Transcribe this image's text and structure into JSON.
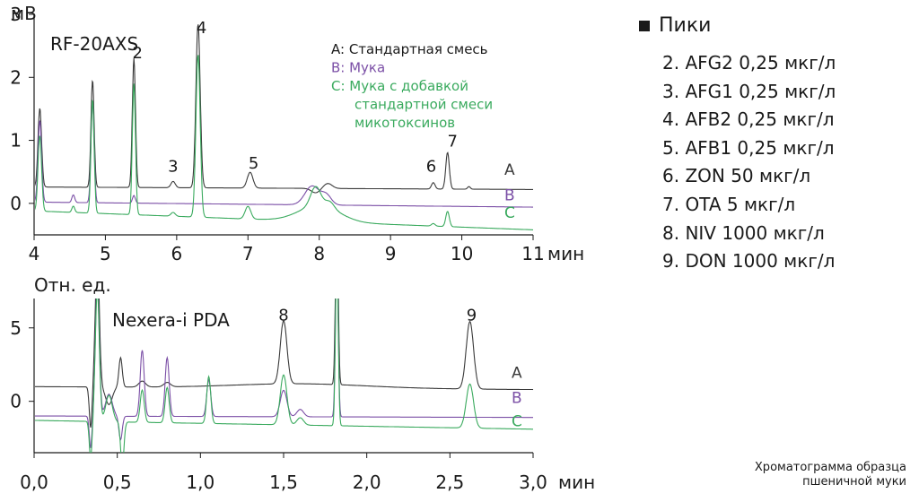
{
  "chart_data": [
    {
      "type": "line",
      "instrument": "RF-20AXS",
      "y_unit": "мВ",
      "x_unit": "мин",
      "xlim": [
        4,
        11
      ],
      "ylim": [
        -0.5,
        3
      ],
      "x_ticks": [
        "4",
        "5",
        "6",
        "7",
        "8",
        "9",
        "10",
        "11"
      ],
      "y_ticks": [
        "0",
        "1",
        "2",
        "3"
      ],
      "grid": false,
      "annotations_legend": [
        "A: Стандартная смесь",
        "B: Мука",
        "C: Мука с добавкой",
        "стандартной смеси",
        "микотоксинов"
      ],
      "peak_labels": [
        {
          "label": "2",
          "x": 5.45,
          "y": 2.3
        },
        {
          "label": "3",
          "x": 5.95,
          "y": 0.5
        },
        {
          "label": "4",
          "x": 6.35,
          "y": 2.7
        },
        {
          "label": "5",
          "x": 7.08,
          "y": 0.55
        },
        {
          "label": "6",
          "x": 9.57,
          "y": 0.5
        },
        {
          "label": "7",
          "x": 9.87,
          "y": 0.9
        }
      ],
      "series": [
        {
          "name": "A",
          "color": "#3a3a3a",
          "baseline": 0.26,
          "end_baseline": 0.22,
          "label_y": 0.45,
          "peaks": [
            [
              4.08,
              1.25,
              0.025
            ],
            [
              4.82,
              1.7,
              0.022
            ],
            [
              5.4,
              2.05,
              0.022
            ],
            [
              5.95,
              0.1,
              0.03
            ],
            [
              6.3,
              2.6,
              0.03
            ],
            [
              7.03,
              0.25,
              0.04
            ],
            [
              7.95,
              -0.07,
              0.06
            ],
            [
              8.12,
              0.08,
              0.06
            ],
            [
              9.6,
              0.1,
              0.025
            ],
            [
              9.8,
              0.58,
              0.025
            ],
            [
              10.1,
              0.04,
              0.02
            ]
          ],
          "drifts": []
        },
        {
          "name": "B",
          "color": "#7b4fa6",
          "baseline": 0.02,
          "end_baseline": -0.06,
          "label_y": 0.05,
          "peaks": [
            [
              4.08,
              1.3,
              0.025
            ],
            [
              4.55,
              0.12,
              0.02
            ],
            [
              4.82,
              1.6,
              0.022
            ],
            [
              5.4,
              0.12,
              0.02
            ],
            [
              7.9,
              0.3,
              0.1
            ],
            [
              8.1,
              0.15,
              0.07
            ]
          ],
          "drifts": []
        },
        {
          "name": "C",
          "color": "#3aaa5e",
          "baseline": -0.12,
          "end_baseline": -0.42,
          "label_y": -0.23,
          "peaks": [
            [
              4.08,
              1.2,
              0.025
            ],
            [
              4.55,
              0.1,
              0.02
            ],
            [
              4.82,
              1.8,
              0.022
            ],
            [
              5.4,
              2.08,
              0.022
            ],
            [
              5.95,
              0.06,
              0.03
            ],
            [
              6.3,
              2.58,
              0.03
            ],
            [
              7.0,
              0.2,
              0.04
            ],
            [
              7.95,
              0.3,
              0.07
            ],
            [
              8.15,
              0.1,
              0.06
            ],
            [
              9.6,
              0.04,
              0.025
            ],
            [
              9.8,
              0.24,
              0.025
            ]
          ],
          "drifts": [
            [
              8.0,
              0.26,
              0.28
            ]
          ]
        }
      ]
    },
    {
      "type": "line",
      "instrument": "Nexera-i PDA",
      "y_unit": "Отн. ед.",
      "x_unit": "мин",
      "xlim": [
        0.0,
        3.0
      ],
      "ylim": [
        -3.5,
        7
      ],
      "x_ticks": [
        "0,0",
        "0,5",
        "1,0",
        "1,5",
        "2,0",
        "2,5",
        "3,0"
      ],
      "y_ticks": [
        "0",
        "5"
      ],
      "grid": false,
      "peak_labels": [
        {
          "label": "8",
          "x": 1.5,
          "y": 5.5
        },
        {
          "label": "9",
          "x": 2.63,
          "y": 5.5
        }
      ],
      "series": [
        {
          "name": "A",
          "color": "#3a3a3a",
          "baseline": 1.0,
          "end_baseline": 0.8,
          "label_y": 1.6,
          "peaks": [
            [
              0.38,
              9,
              0.012
            ],
            [
              0.34,
              -2.8,
              0.008
            ],
            [
              0.45,
              -1.2,
              0.02
            ],
            [
              0.52,
              2.0,
              0.01
            ],
            [
              0.65,
              0.4,
              0.02
            ],
            [
              0.8,
              0.3,
              0.02
            ],
            [
              1.5,
              4.3,
              0.02
            ],
            [
              1.82,
              12,
              0.008
            ],
            [
              2.62,
              4.6,
              0.022
            ]
          ],
          "drifts": [
            [
              1.6,
              0.3,
              0.4
            ]
          ]
        },
        {
          "name": "B",
          "color": "#7b4fa6",
          "baseline": -1.0,
          "end_baseline": -1.1,
          "label_y": -0.1,
          "peaks": [
            [
              0.38,
              9,
              0.012
            ],
            [
              0.34,
              -2.2,
              0.008
            ],
            [
              0.45,
              1.5,
              0.02
            ],
            [
              0.52,
              -1.6,
              0.01
            ],
            [
              0.65,
              4.5,
              0.012
            ],
            [
              0.8,
              4.0,
              0.012
            ],
            [
              1.05,
              2.5,
              0.012
            ],
            [
              1.5,
              1.8,
              0.02
            ],
            [
              1.6,
              0.5,
              0.02
            ],
            [
              1.82,
              12,
              0.008
            ]
          ],
          "drifts": []
        },
        {
          "name": "C",
          "color": "#3aaa5e",
          "baseline": -1.3,
          "end_baseline": -1.9,
          "label_y": -1.7,
          "peaks": [
            [
              0.38,
              9,
              0.012
            ],
            [
              0.34,
              -2.6,
              0.008
            ],
            [
              0.45,
              1.8,
              0.02
            ],
            [
              0.53,
              -3.0,
              0.01
            ],
            [
              0.65,
              2.2,
              0.012
            ],
            [
              0.8,
              2.4,
              0.012
            ],
            [
              1.05,
              3.2,
              0.012
            ],
            [
              1.5,
              3.4,
              0.02
            ],
            [
              1.6,
              0.5,
              0.02
            ],
            [
              1.82,
              12,
              0.008
            ],
            [
              2.62,
              3.0,
              0.022
            ]
          ],
          "drifts": []
        }
      ]
    }
  ],
  "legend": {
    "title": "Пики",
    "items": [
      "2. AFG2 0,25 мкг/л",
      "3. AFG1 0,25 мкг/л",
      "4. AFB2 0,25 мкг/л",
      "5. AFB1 0,25 мкг/л",
      "6. ZON 50 мкг/л",
      "7. OTA 5 мкг/л",
      "8. NIV 1000 мкг/л",
      "9. DON 1000 мкг/л"
    ]
  },
  "caption": [
    "Хроматограмма образца",
    "пшеничной муки"
  ]
}
